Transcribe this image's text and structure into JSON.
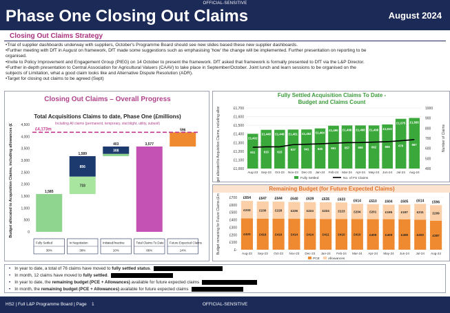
{
  "header": {
    "classification": "OFFICIAL-SENSITIVE",
    "title": "Phase One Closing Out Claims",
    "date": "August 2024"
  },
  "strategy": {
    "title": "Closing Out Claims Strategy",
    "lines": [
      "•Trial of supplier dashboards underway with suppliers, October's Programme Board should see new slides based these new supplier dashboards.",
      "•Further meeting with DfT in August on framework, DfT made some suggestions such as emphasising 'how' the change will be implemented. Further presentation on reporting to be",
      "organised.",
      "•Invite to Policy Improvement and Engagement Group (PIEG) on 14 October to present the framework. DfT asked that framework is formally presented to DfT via the L&P Director.",
      "•Further in-depth presentation to Central Association for Agricultural Valuers (CAAV) to take place in September/October. Joint lunch and learn sessions to be organised on the",
      "subjects of Limitation, what a good claim looks like and Alternative Dispute Resolution (ADR).",
      "•Target for closing out claims to be agreed (Sept)"
    ]
  },
  "progress": {
    "title": "Closing Out Claims – Overall Progress",
    "subtitle": "Total Acquisitions Claims to date, Phase One (£millions)",
    "note": "Including All claims (permanent, temporary, stat blight, utility, subsoil)",
    "ylabel": "Budget allocated to Acquisition Claims, including allowances (£m)",
    "target_label": "£4,173m",
    "colors": {
      "settled": "#8fd48f",
      "negotiation_dark": "#1c3a6e",
      "negotiation_light": "#8fd48f",
      "pink": "#c452b4",
      "orange": "#f08a30",
      "target": "#c4348a"
    }
  },
  "chart_data": [
    {
      "type": "bar",
      "title": "",
      "ylabel": "Budget allocated to Acquisition Claims, including allowances (£m)",
      "ylim": [
        0,
        4500
      ],
      "yticks": [
        0,
        500,
        1000,
        1500,
        2000,
        2500,
        3000,
        3500,
        4000,
        4500
      ],
      "target": 4173,
      "categories": [
        "Fully Settled",
        "In Negotiation",
        "Initiated/Inactive",
        "Total Claims To Date",
        "Future Expected Claims"
      ],
      "percentages": [
        "38%",
        "38%",
        "10%",
        "86%",
        "14%"
      ],
      "segments": [
        {
          "category": "Fully Settled",
          "base": 0,
          "value": 1585,
          "label": "1,585",
          "color": "#8fd48f"
        },
        {
          "category": "In Negotiation",
          "base": 1585,
          "value": 733,
          "label": "733",
          "color": "#a8e6a0"
        },
        {
          "category": "In Negotiation",
          "base": 2318,
          "value": 856,
          "label": "856",
          "color": "#1c3a6e"
        },
        {
          "category": "Initiated/Inactive",
          "base": 3174,
          "value": 95,
          "label": "95",
          "color": "#8fd48f"
        },
        {
          "category": "Initiated/Inactive",
          "base": 3269,
          "value": 308,
          "label": "308",
          "color": "#1c3a6e"
        },
        {
          "category": "Total Claims To Date",
          "base": 0,
          "value": 3577,
          "label": "3,577",
          "color": "#c452b4"
        },
        {
          "category": "Future Expected Claims",
          "base": 3577,
          "value": 596,
          "label": "596",
          "color": "#f08a30"
        }
      ],
      "totals": [
        {
          "category": "In Negotiation",
          "value": 3174,
          "label": "1,589"
        },
        {
          "category": "Initiated/Inactive",
          "value": 3577,
          "label": "403"
        }
      ]
    },
    {
      "type": "bar",
      "title": "Fully Settled Acquisition Claims To Date - Budget and Claims Count",
      "ylabel": "Budget allocated to Acquisition Claims, including allowances (£m)",
      "y2label": "Number of Claims",
      "ylim": [
        1000,
        1700
      ],
      "y2lim": [
        400,
        1000
      ],
      "yticks": [
        "£1,000",
        "£1,100",
        "£1,200",
        "£1,300",
        "£1,400",
        "£1,500",
        "£1,600",
        "£1,700"
      ],
      "y2ticks": [
        "400",
        "500",
        "600",
        "700",
        "800",
        "900",
        "1000"
      ],
      "categories": [
        "Aug-23",
        "Sep-23",
        "Oct-23",
        "Nov-23",
        "Dec-23",
        "Jan-24",
        "Feb-24",
        "Mar-24",
        "Apr-24",
        "May-24",
        "Jun-24",
        "Jul-24",
        "Aug-24"
      ],
      "series": [
        {
          "name": "Fully Settled",
          "values": [
            1402,
            1448,
            1448,
            1451,
            1452,
            1464,
            1495,
            1498,
            1498,
            1498,
            1510,
            1575,
            1585
          ],
          "labels": [
            "£1,402",
            "£1,448",
            "£1,448",
            "£1,451",
            "£1,452",
            "£1,464",
            "£1,495",
            "£1,498",
            "£1,498",
            "£1,498",
            "£1,510",
            "£1,575",
            "£1,585"
          ],
          "color": "#3aa83a"
        },
        {
          "name": "No. of FS Claims",
          "values": [
            611,
            615,
            615,
            637,
            641,
            645,
            651,
            657,
            658,
            662,
            666,
            676,
            687
          ],
          "color": "#000000"
        }
      ]
    },
    {
      "type": "bar",
      "title": "Remaining Budget (for Future Expected Claims)",
      "ylabel": "Budget remaining for Future Claims (£m)",
      "ylim": [
        0,
        700
      ],
      "yticks": [
        "£-",
        "£100",
        "£200",
        "£300",
        "£400",
        "£500",
        "£600",
        "£700"
      ],
      "categories": [
        "Aug-23",
        "Sep-23",
        "Oct-23",
        "Nov-23",
        "Dec-23",
        "Jan-24",
        "Feb-24",
        "Mar-24",
        "Apr-24",
        "May-24",
        "Jun-24",
        "Jul-24",
        "Aug-24"
      ],
      "totals": [
        "£654",
        "£647",
        "£644",
        "£640",
        "£639",
        "£635",
        "£633",
        "£614",
        "£610",
        "£604",
        "£605",
        "£614",
        "£596"
      ],
      "series": [
        {
          "name": "PCE",
          "values": [
            420,
            416,
            416,
            414,
            414,
            411,
            410,
            410,
            409,
            409,
            408,
            403,
            387
          ],
          "labels": [
            "£420",
            "£416",
            "£416",
            "£414",
            "£414",
            "£411",
            "£410",
            "£410",
            "£409",
            "£409",
            "£408",
            "£403",
            "£387"
          ],
          "color": "#f08a30"
        },
        {
          "name": "Allowances",
          "values": [
            233,
            230,
            228,
            226,
            224,
            224,
            223,
            204,
            201,
            195,
            197,
            211,
            209
          ],
          "labels": [
            "£233",
            "£230",
            "£228",
            "£226",
            "£224",
            "£224",
            "£223",
            "£204",
            "£201",
            "£195",
            "£197",
            "£211",
            "£209"
          ],
          "color": "#fbd0a8"
        }
      ]
    }
  ],
  "bullets": [
    {
      "pre": "In year to date, a total of 76 claims have moved to ",
      "bold": "fully settled status",
      "post": ".",
      "redact_w": 100
    },
    {
      "pre": "In month, 12 claims have moved to ",
      "bold": "fully settled",
      "post": ".",
      "redact_w": 90
    },
    {
      "pre": "In year to date, the ",
      "bold": "remaining budget (PCE + Allowances)",
      "post": " available for future expected claims",
      "redact_w": 80
    },
    {
      "pre": "In month, the ",
      "bold": "remaining budget (PCE + Allowances)",
      "post": " available for future expected claims",
      "redact_w": 75
    }
  ],
  "footer": {
    "left": "HS2 | Full L&P Programme Board | Page",
    "page": "1",
    "classification": "OFFICIAL-SENSITIVE"
  }
}
